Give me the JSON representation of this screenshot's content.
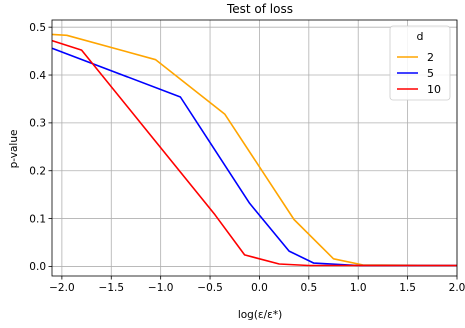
{
  "chart_data": {
    "type": "line",
    "title": "Test of loss",
    "xlabel": "log(ε/ε*)",
    "ylabel": "p-value",
    "xlim": [
      -2.1,
      2.0
    ],
    "ylim": [
      -0.02,
      0.515
    ],
    "xticks": [
      -2.0,
      -1.5,
      -1.0,
      -0.5,
      0.0,
      0.5,
      1.0,
      1.5,
      2.0
    ],
    "xtick_labels": [
      "−2.0",
      "−1.5",
      "−1.0",
      "−0.5",
      "0.0",
      "0.5",
      "1.0",
      "1.5",
      "2.0"
    ],
    "yticks": [
      0.0,
      0.1,
      0.2,
      0.3,
      0.4,
      0.5
    ],
    "ytick_labels": [
      "0.0",
      "0.1",
      "0.2",
      "0.3",
      "0.4",
      "0.5"
    ],
    "grid": true,
    "legend": {
      "title": "d",
      "placement": "top-right"
    },
    "series": [
      {
        "name": "2",
        "color": "#ffa500",
        "x": [
          -2.1,
          -1.95,
          -1.05,
          -0.35,
          0.35,
          0.75,
          1.05,
          2.0
        ],
        "y": [
          0.485,
          0.483,
          0.432,
          0.318,
          0.098,
          0.016,
          0.003,
          0.002
        ]
      },
      {
        "name": "5",
        "color": "#0000ff",
        "x": [
          -2.1,
          -0.8,
          -0.1,
          0.3,
          0.55,
          1.0,
          2.0
        ],
        "y": [
          0.456,
          0.354,
          0.132,
          0.032,
          0.007,
          0.002,
          0.002
        ]
      },
      {
        "name": "10",
        "color": "#ff0000",
        "x": [
          -2.1,
          -1.8,
          -0.45,
          -0.15,
          0.2,
          0.5,
          1.0,
          2.0
        ],
        "y": [
          0.472,
          0.452,
          0.108,
          0.024,
          0.005,
          0.002,
          0.002,
          0.002
        ]
      }
    ]
  }
}
